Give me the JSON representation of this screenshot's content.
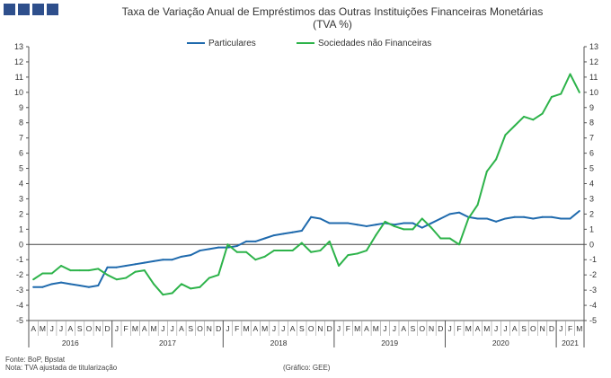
{
  "header": {
    "title": "Taxa de Variação Anual de Empréstimos das Outras Instituições Financeiras Monetárias",
    "subtitle": "(TVA %)"
  },
  "footer": {
    "source": "Fonte: BoP, Bpstat",
    "note": "Nota: TVA ajustada de titularização",
    "credit": "(Gráfico: GEE)"
  },
  "colors": {
    "particulares": "#1f6aad",
    "sociedades": "#2db34a",
    "axis": "#555555",
    "logo": "#2e4f8c"
  },
  "chart_data": {
    "type": "line",
    "title": "Taxa de Variação Anual de Empréstimos das Outras Instituições Financeiras Monetárias",
    "subtitle": "(TVA %)",
    "ylim": [
      -5,
      13
    ],
    "yticks": [
      -5,
      -4,
      -3,
      -2,
      -1,
      0,
      1,
      2,
      3,
      4,
      5,
      6,
      7,
      8,
      9,
      10,
      11,
      12,
      13
    ],
    "grid": false,
    "legend": "top",
    "x": [
      "2016-04",
      "2016-05",
      "2016-06",
      "2016-07",
      "2016-08",
      "2016-09",
      "2016-10",
      "2016-11",
      "2016-12",
      "2017-01",
      "2017-02",
      "2017-03",
      "2017-04",
      "2017-05",
      "2017-06",
      "2017-07",
      "2017-08",
      "2017-09",
      "2017-10",
      "2017-11",
      "2017-12",
      "2018-01",
      "2018-02",
      "2018-03",
      "2018-04",
      "2018-05",
      "2018-06",
      "2018-07",
      "2018-08",
      "2018-09",
      "2018-10",
      "2018-11",
      "2018-12",
      "2019-01",
      "2019-02",
      "2019-03",
      "2019-04",
      "2019-05",
      "2019-06",
      "2019-07",
      "2019-08",
      "2019-09",
      "2019-10",
      "2019-11",
      "2019-12",
      "2020-01",
      "2020-02",
      "2020-03",
      "2020-04",
      "2020-05",
      "2020-06",
      "2020-07",
      "2020-08",
      "2020-09",
      "2020-10",
      "2020-11",
      "2020-12",
      "2021-01",
      "2021-02",
      "2021-03"
    ],
    "month_labels": [
      "A",
      "M",
      "J",
      "J",
      "A",
      "S",
      "O",
      "N",
      "D",
      "J",
      "F",
      "M",
      "A",
      "M",
      "J",
      "J",
      "A",
      "S",
      "O",
      "N",
      "D",
      "J",
      "F",
      "M",
      "A",
      "M",
      "J",
      "J",
      "A",
      "S",
      "O",
      "N",
      "D",
      "J",
      "F",
      "M",
      "A",
      "M",
      "J",
      "J",
      "A",
      "S",
      "O",
      "N",
      "D",
      "J",
      "F",
      "M",
      "A",
      "M",
      "J",
      "J",
      "A",
      "S",
      "O",
      "N",
      "D",
      "J",
      "F",
      "M"
    ],
    "years": [
      {
        "label": "2016",
        "start": 0,
        "end": 8
      },
      {
        "label": "2017",
        "start": 9,
        "end": 20
      },
      {
        "label": "2018",
        "start": 21,
        "end": 32
      },
      {
        "label": "2019",
        "start": 33,
        "end": 44
      },
      {
        "label": "2020",
        "start": 45,
        "end": 56
      },
      {
        "label": "2021",
        "start": 57,
        "end": 59
      }
    ],
    "series": [
      {
        "name": "Particulares",
        "values": [
          -2.8,
          -2.8,
          -2.6,
          -2.5,
          -2.6,
          -2.7,
          -2.8,
          -2.7,
          -1.5,
          -1.5,
          -1.4,
          -1.3,
          -1.2,
          -1.1,
          -1.0,
          -1.0,
          -0.8,
          -0.7,
          -0.4,
          -0.3,
          -0.2,
          -0.2,
          -0.1,
          0.2,
          0.2,
          0.4,
          0.6,
          0.7,
          0.8,
          0.9,
          1.8,
          1.7,
          1.4,
          1.4,
          1.4,
          1.3,
          1.2,
          1.3,
          1.4,
          1.3,
          1.4,
          1.4,
          1.1,
          1.4,
          1.7,
          2.0,
          2.1,
          1.8,
          1.7,
          1.7,
          1.5,
          1.7,
          1.8,
          1.8,
          1.7,
          1.8,
          1.8,
          1.7,
          1.7,
          2.2
        ]
      },
      {
        "name": "Sociedades não Financeiras",
        "values": [
          -2.3,
          -1.9,
          -1.9,
          -1.4,
          -1.7,
          -1.7,
          -1.7,
          -1.6,
          -2.0,
          -2.3,
          -2.2,
          -1.8,
          -1.7,
          -2.6,
          -3.3,
          -3.2,
          -2.6,
          -2.9,
          -2.8,
          -2.2,
          -2.0,
          -0.0,
          -0.5,
          -0.5,
          -1.0,
          -0.8,
          -0.4,
          -0.4,
          -0.4,
          0.1,
          -0.5,
          -0.4,
          0.2,
          -1.4,
          -0.7,
          -0.6,
          -0.4,
          0.6,
          1.5,
          1.2,
          1.0,
          1.0,
          1.7,
          1.1,
          0.4,
          0.4,
          0.0,
          1.7,
          2.6,
          4.8,
          5.6,
          7.2,
          7.8,
          8.4,
          8.2,
          8.6,
          9.7,
          9.9,
          11.2,
          10.0
        ]
      }
    ]
  }
}
